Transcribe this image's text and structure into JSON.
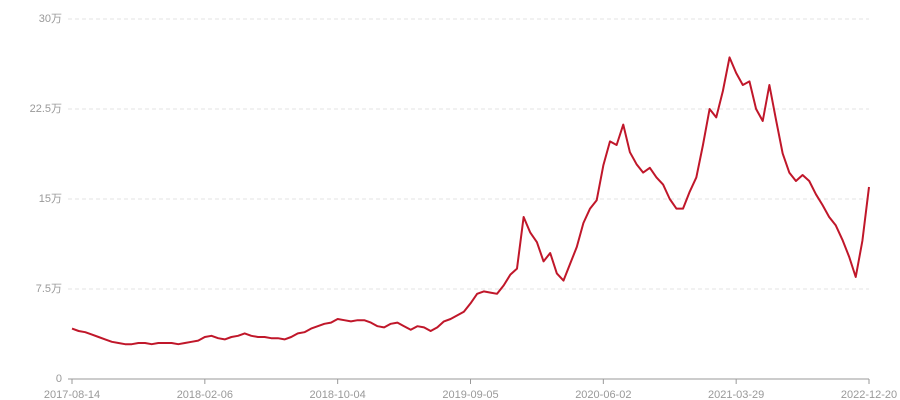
{
  "chart_data": {
    "type": "line",
    "categories": [
      "2017-08-14",
      null,
      null,
      null,
      null,
      null,
      null,
      null,
      null,
      null,
      null,
      null,
      null,
      null,
      null,
      null,
      null,
      null,
      null,
      null,
      "2018-02-06",
      null,
      null,
      null,
      null,
      null,
      null,
      null,
      null,
      null,
      null,
      null,
      null,
      null,
      null,
      null,
      null,
      null,
      null,
      null,
      "2018-10-04",
      null,
      null,
      null,
      null,
      null,
      null,
      null,
      null,
      null,
      null,
      null,
      null,
      null,
      null,
      null,
      null,
      null,
      null,
      null,
      "2019-09-05",
      null,
      null,
      null,
      null,
      null,
      null,
      null,
      null,
      null,
      null,
      null,
      null,
      null,
      null,
      null,
      null,
      null,
      null,
      null,
      "2020-06-02",
      null,
      null,
      null,
      null,
      null,
      null,
      null,
      null,
      null,
      null,
      null,
      null,
      null,
      null,
      null,
      null,
      null,
      null,
      null,
      "2021-03-29",
      null,
      null,
      null,
      null,
      null,
      null,
      null,
      null,
      null,
      null,
      null,
      null,
      null,
      null,
      null,
      null,
      null,
      null,
      null,
      "2022-12-20"
    ],
    "values": [
      4.2,
      4.0,
      3.9,
      3.7,
      3.5,
      3.3,
      3.1,
      3.0,
      2.9,
      2.9,
      3.0,
      3.0,
      2.9,
      3.0,
      3.0,
      3.0,
      2.9,
      3.0,
      3.1,
      3.2,
      3.5,
      3.6,
      3.4,
      3.3,
      3.5,
      3.6,
      3.8,
      3.6,
      3.5,
      3.5,
      3.4,
      3.4,
      3.3,
      3.5,
      3.8,
      3.9,
      4.2,
      4.4,
      4.6,
      4.7,
      5.0,
      4.9,
      4.8,
      4.9,
      4.9,
      4.7,
      4.4,
      4.3,
      4.6,
      4.7,
      4.4,
      4.1,
      4.4,
      4.3,
      4.0,
      4.3,
      4.8,
      5.0,
      5.3,
      5.6,
      6.3,
      7.1,
      7.3,
      7.2,
      7.1,
      7.8,
      8.7,
      9.2,
      13.5,
      12.2,
      11.4,
      9.8,
      10.5,
      8.8,
      8.2,
      9.6,
      11.0,
      13.0,
      14.2,
      14.9,
      17.8,
      19.8,
      19.5,
      21.2,
      18.9,
      17.9,
      17.2,
      17.6,
      16.8,
      16.2,
      15.0,
      14.2,
      14.2,
      15.6,
      16.8,
      19.5,
      22.5,
      21.8,
      24.0,
      26.8,
      25.5,
      24.5,
      24.8,
      22.5,
      21.5,
      24.5,
      21.6,
      18.8,
      17.2,
      16.5,
      17.0,
      16.5,
      15.4,
      14.5,
      13.5,
      12.8,
      11.6,
      10.2,
      8.5,
      11.5,
      16.0
    ],
    "color": "#c0172a",
    "ylim": [
      0,
      30
    ],
    "yticks": [
      0,
      {
        "value": 7.5,
        "label": "7.5万"
      },
      {
        "value": 15,
        "label": "15万"
      },
      {
        "value": 22.5,
        "label": "22.5万"
      },
      {
        "value": 30,
        "label": "30万"
      }
    ],
    "grid": true
  }
}
